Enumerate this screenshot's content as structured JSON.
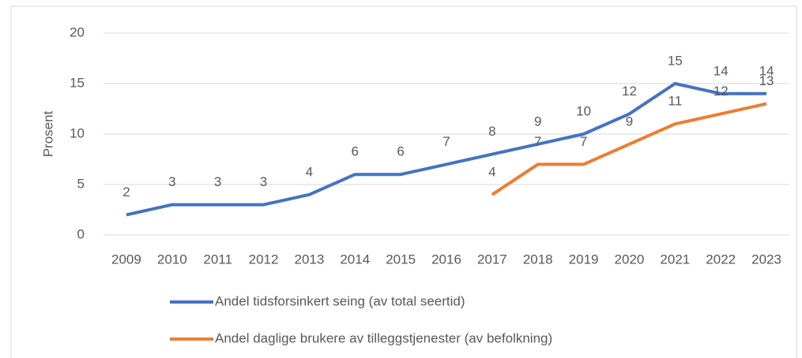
{
  "chart_data": {
    "type": "line",
    "y_label": "Prosent",
    "categories": [
      "2009",
      "2010",
      "2011",
      "2012",
      "2013",
      "2014",
      "2015",
      "2016",
      "2017",
      "2018",
      "2019",
      "2020",
      "2021",
      "2022",
      "2023"
    ],
    "series": [
      {
        "name": "Andel tidsforsinkert seing (av total seertid)",
        "color": "#4472c4",
        "values": [
          2,
          3,
          3,
          3,
          4,
          6,
          6,
          7,
          8,
          9,
          10,
          12,
          15,
          14,
          14
        ]
      },
      {
        "name": "Andel daglige brukere av tilleggstjenester (av befolkning)",
        "color": "#ed7d31",
        "values": [
          null,
          null,
          null,
          null,
          null,
          null,
          null,
          null,
          4,
          7,
          7,
          9,
          11,
          12,
          13
        ]
      }
    ],
    "ylim": [
      0,
      20
    ],
    "yticks": [
      0,
      5,
      10,
      15,
      20
    ],
    "grid": true,
    "legend": "bottom",
    "data_labels": true
  }
}
